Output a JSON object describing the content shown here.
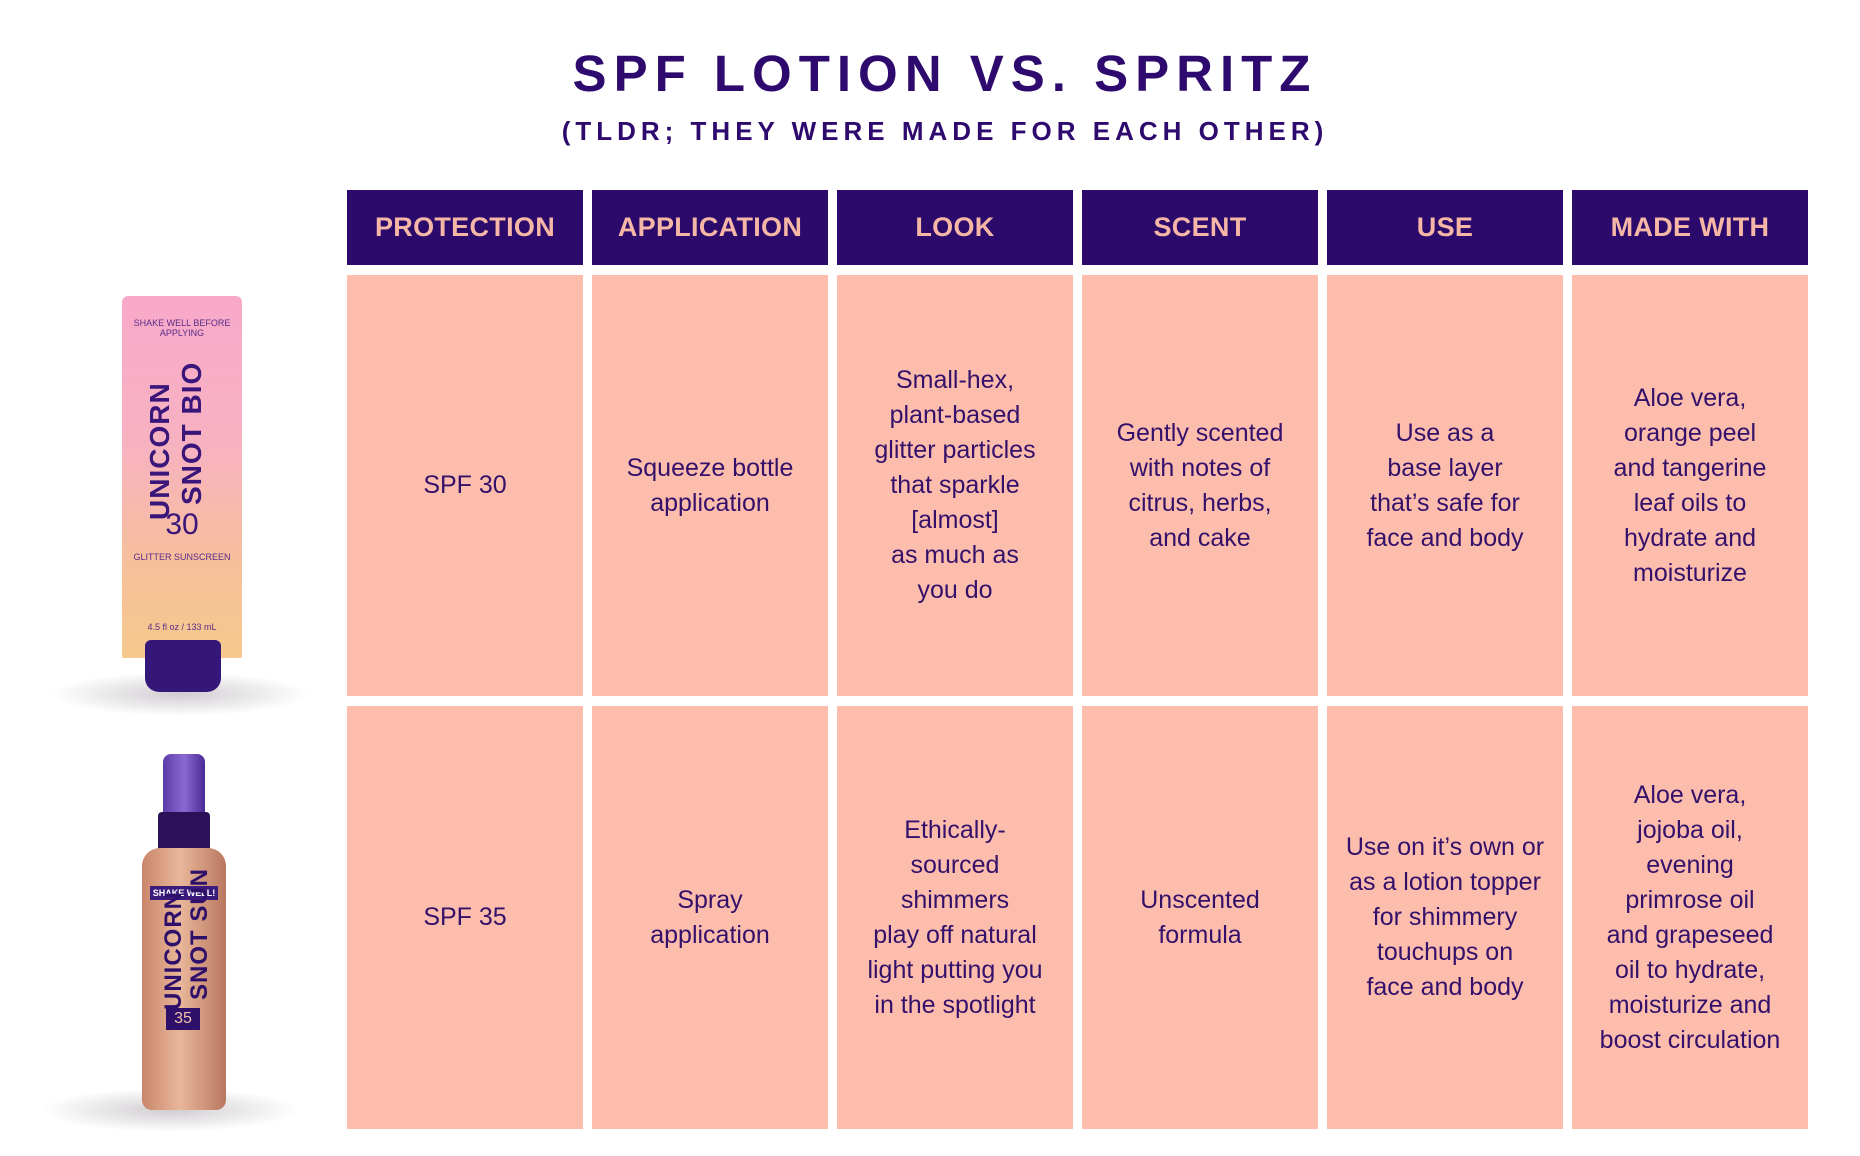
{
  "header": {
    "title": "SPF LOTION VS. SPRITZ",
    "subtitle": "(TLDR; THEY WERE MADE FOR EACH OTHER)"
  },
  "table": {
    "columns": [
      "PROTECTION",
      "APPLICATION",
      "LOOK",
      "SCENT",
      "USE",
      "MADE WITH"
    ],
    "rows": [
      {
        "cells": [
          "SPF 30",
          "Squeeze bottle\napplication",
          "Small-hex,\nplant-based\nglitter particles\nthat sparkle\n[almost]\nas much as\nyou do",
          "Gently scented\nwith notes of\ncitrus, herbs,\nand cake",
          "Use as a\nbase layer\nthat’s safe for\nface and body",
          "Aloe vera,\norange peel\nand tangerine\nleaf oils to\nhydrate and\nmoisturize"
        ]
      },
      {
        "cells": [
          "SPF 35",
          "Spray\napplication",
          "Ethically-\nsourced\nshimmers\nplay off natural\nlight putting you\nin the spotlight",
          "Unscented\nformula",
          "Use on it’s own or\nas a lotion topper\nfor shimmery\ntouchups on\nface and body",
          "Aloe vera,\njojoba oil,\nevening\nprimrose oil\nand grapeseed\noil to hydrate,\nmoisturize and\nboost circulation"
        ]
      }
    ]
  },
  "products": {
    "lotion": {
      "line1": "UNICORN",
      "line2": "SNOT BIO",
      "top_label": "SHAKE WELL BEFORE APPLYING",
      "number": "30",
      "desc": "GLITTER SUNSCREEN",
      "size": "4.5 fl oz / 133 mL"
    },
    "spray": {
      "band": "SHAKE WELL!",
      "line1": "UNICORN",
      "line2": "SNOT SUN",
      "number": "35"
    }
  },
  "colors": {
    "header_bg": "#2b0a6b",
    "header_text": "#f6b7a6",
    "cell_bg": "#fdbdad",
    "text": "#33106a"
  }
}
